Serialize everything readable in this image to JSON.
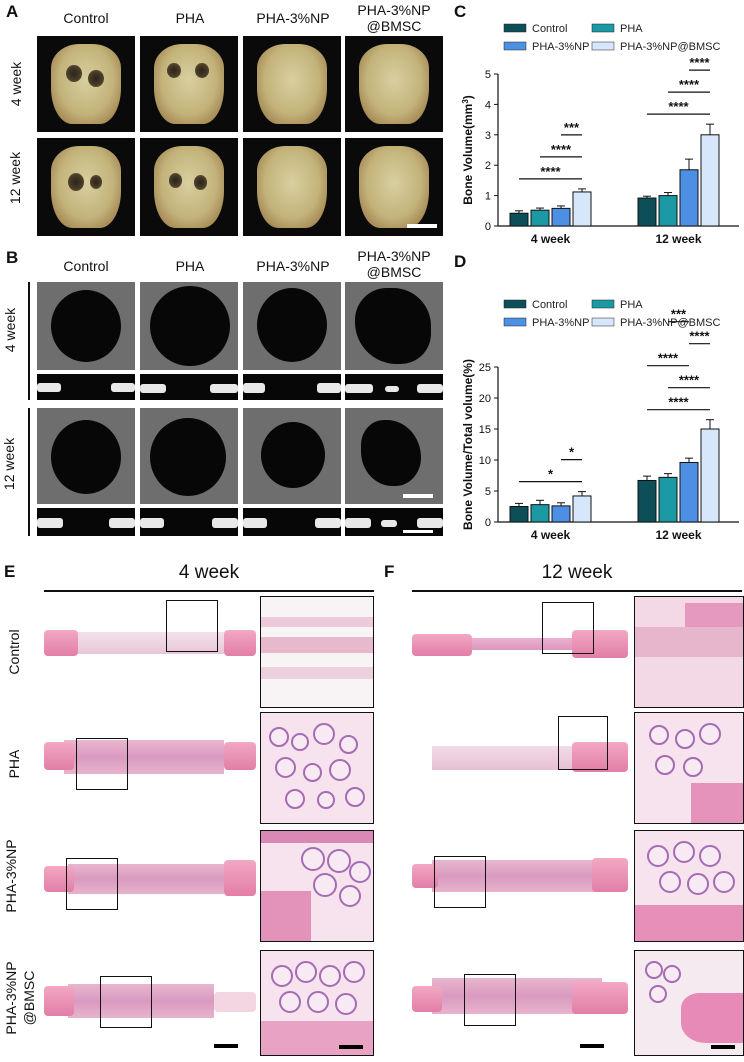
{
  "panels": {
    "A": "A",
    "B": "B",
    "C": "C",
    "D": "D",
    "E": "E",
    "F": "F"
  },
  "groups": {
    "control": "Control",
    "pha": "PHA",
    "pha3np": "PHA-3%NP",
    "pha3np_bmsc_line1": "PHA-3%NP",
    "pha3np_bmsc_line2": "@BMSC",
    "pha3np_bmsc_full": "PHA-3%NP@BMSC"
  },
  "timepoints": {
    "w4": "4 week",
    "w12": "12 week"
  },
  "histology": {
    "rows": [
      "Control",
      "PHA",
      "PHA-3%NP"
    ],
    "last_row_line1": "PHA-3%NP",
    "last_row_line2": "@BMSC"
  },
  "colors": {
    "control": "#0d4f58",
    "pha": "#1b9aa5",
    "pha3np": "#4c8fe3",
    "bmsc": "#d6e6fb"
  },
  "chart_data": [
    {
      "type": "bar",
      "panel": "C",
      "categories": [
        "4 week",
        "12 week"
      ],
      "ylabel": "Bone Volume(mm3)",
      "ylabel_main": "Bone Volume(mm",
      "ylabel_sup": "3",
      "ylabel_end": ")",
      "ylim": [
        0,
        5
      ],
      "yticks": [
        "0",
        "1",
        "2",
        "3",
        "4",
        "5"
      ],
      "series": [
        {
          "name": "Control",
          "values": [
            0.42,
            0.92
          ],
          "errors": [
            0.08,
            0.06
          ]
        },
        {
          "name": "PHA",
          "values": [
            0.52,
            1.0
          ],
          "errors": [
            0.07,
            0.1
          ]
        },
        {
          "name": "PHA-3%NP",
          "values": [
            0.58,
            1.85
          ],
          "errors": [
            0.08,
            0.35
          ]
        },
        {
          "name": "PHA-3%NP@BMSC",
          "values": [
            1.12,
            3.0
          ],
          "errors": [
            0.1,
            0.35
          ]
        }
      ],
      "significance": [
        {
          "category": 0,
          "from": 0,
          "to": 3,
          "label": "****"
        },
        {
          "category": 0,
          "from": 1,
          "to": 3,
          "label": "****"
        },
        {
          "category": 0,
          "from": 2,
          "to": 3,
          "label": "***"
        },
        {
          "category": 1,
          "from": 0,
          "to": 3,
          "label": "****"
        },
        {
          "category": 1,
          "from": 1,
          "to": 3,
          "label": "****"
        },
        {
          "category": 1,
          "from": 2,
          "to": 3,
          "label": "****"
        }
      ],
      "legend_placement": "top"
    },
    {
      "type": "bar",
      "panel": "D",
      "categories": [
        "4 week",
        "12 week"
      ],
      "ylabel": "Bone Volume/Total volume(%)",
      "ylim": [
        0,
        25
      ],
      "yticks": [
        "0",
        "5",
        "10",
        "15",
        "20",
        "25"
      ],
      "series": [
        {
          "name": "Control",
          "values": [
            2.5,
            6.7
          ],
          "errors": [
            0.5,
            0.7
          ]
        },
        {
          "name": "PHA",
          "values": [
            2.8,
            7.2
          ],
          "errors": [
            0.7,
            0.6
          ]
        },
        {
          "name": "PHA-3%NP",
          "values": [
            2.6,
            9.6
          ],
          "errors": [
            0.5,
            0.7
          ]
        },
        {
          "name": "PHA-3%NP@BMSC",
          "values": [
            4.2,
            15.0
          ],
          "errors": [
            0.7,
            1.5
          ]
        }
      ],
      "significance": [
        {
          "category": 0,
          "from": 0,
          "to": 3,
          "label": "*"
        },
        {
          "category": 0,
          "from": 2,
          "to": 3,
          "label": "*"
        },
        {
          "category": 1,
          "from": 0,
          "to": 3,
          "label": "****"
        },
        {
          "category": 1,
          "from": 1,
          "to": 3,
          "label": "****"
        },
        {
          "category": 1,
          "from": 0,
          "to": 2,
          "label": "****"
        },
        {
          "category": 1,
          "from": 2,
          "to": 3,
          "label": "****"
        },
        {
          "category": 1,
          "from": 1,
          "to": 2,
          "label": "***"
        }
      ],
      "legend_placement": "top"
    }
  ]
}
